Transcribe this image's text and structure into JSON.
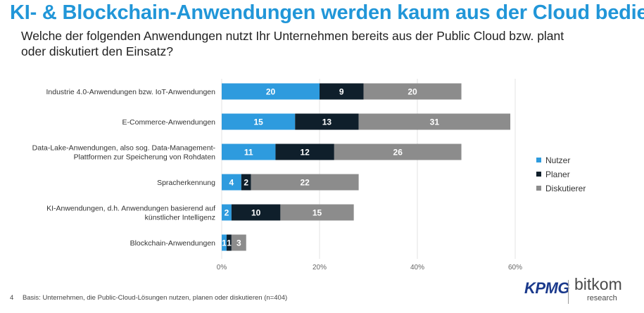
{
  "title": "KI- & Blockchain-Anwendungen werden kaum aus der Cloud bedient",
  "subtitle": "Welche der folgenden Anwendungen nutzt Ihr Unternehmen bereits aus der Public Cloud bzw. plant oder diskutiert den Einsatz?",
  "footnote": {
    "page_number": "4",
    "text": "Basis: Unternehmen, die Public-Cloud-Lösungen nutzen, planen oder diskutieren (n=404)"
  },
  "logos": {
    "kpmg": "KPMG",
    "bitkom": "bitkom",
    "bitkom_sub": "research"
  },
  "chart_data": {
    "type": "bar",
    "orientation": "horizontal",
    "stacked": true,
    "categories": [
      [
        "Industrie 4.0-Anwendungen bzw. IoT-Anwendungen"
      ],
      [
        "E-Commerce-Anwendungen"
      ],
      [
        "Data-Lake-Anwendungen, also sog. Data-Management-",
        "Plattformen zur Speicherung von Rohdaten"
      ],
      [
        "Spracherkennung"
      ],
      [
        "KI-Anwendungen, d.h. Anwendungen basierend auf",
        "künstlicher Intelligenz"
      ],
      [
        "Blockchain-Anwendungen"
      ]
    ],
    "series": [
      {
        "name": "Nutzer",
        "color": "#2e9bde",
        "values": [
          20,
          15,
          11,
          4,
          2,
          1
        ]
      },
      {
        "name": "Planer",
        "color": "#0f1f2b",
        "values": [
          9,
          13,
          12,
          2,
          10,
          1
        ]
      },
      {
        "name": "Diskutierer",
        "color": "#8c8c8c",
        "values": [
          20,
          31,
          26,
          22,
          15,
          3
        ]
      }
    ],
    "xlim": [
      0,
      60
    ],
    "xticks": [
      0,
      20,
      40,
      60
    ],
    "xtick_labels": [
      "0%",
      "20%",
      "40%",
      "60%"
    ],
    "grid": true,
    "legend_position": "right"
  }
}
